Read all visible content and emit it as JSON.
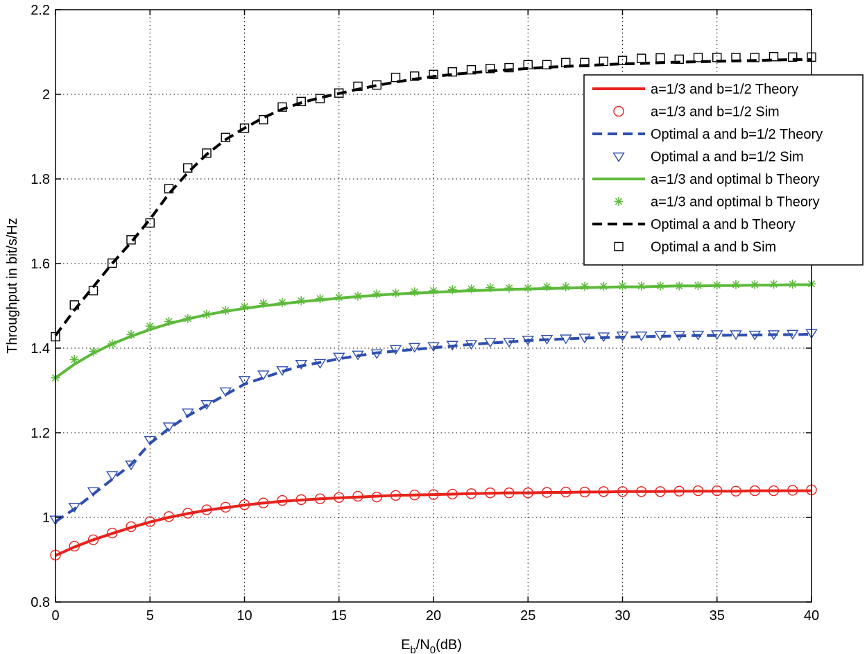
{
  "chart_data": {
    "type": "line",
    "xlabel": {
      "main": "E",
      "sub1": "b",
      "mid": "/N",
      "sub2": "0",
      "tail": "(dB)"
    },
    "ylabel": "Throughput in bit/s/Hz",
    "xlim": [
      0,
      40
    ],
    "ylim": [
      0.8,
      2.2
    ],
    "xticks": [
      0,
      5,
      10,
      15,
      20,
      25,
      30,
      35,
      40
    ],
    "xtick_labels": [
      "0",
      "5",
      "10",
      "15",
      "20",
      "25",
      "30",
      "35",
      "40"
    ],
    "yticks": [
      0.8,
      1.0,
      1.2,
      1.4,
      1.6,
      1.8,
      2.0,
      2.2
    ],
    "ytick_labels": [
      "0.8",
      "1",
      "1.2",
      "1.4",
      "1.6",
      "1.8",
      "2",
      "2.2"
    ],
    "grid": true,
    "legend_position": "top-right",
    "x": [
      0,
      1,
      2,
      3,
      4,
      5,
      6,
      7,
      8,
      9,
      10,
      11,
      12,
      13,
      14,
      15,
      16,
      17,
      18,
      19,
      20,
      21,
      22,
      23,
      24,
      25,
      26,
      27,
      28,
      29,
      30,
      31,
      32,
      33,
      34,
      35,
      36,
      37,
      38,
      39,
      40
    ],
    "series": [
      {
        "name": "a=1/3 and b=1/2 Theory",
        "style": "solid",
        "color": "#e8221c",
        "values": [
          0.91,
          0.93,
          0.947,
          0.962,
          0.976,
          0.989,
          1.0,
          1.009,
          1.017,
          1.023,
          1.029,
          1.034,
          1.038,
          1.041,
          1.044,
          1.046,
          1.048,
          1.05,
          1.052,
          1.053,
          1.054,
          1.055,
          1.056,
          1.057,
          1.058,
          1.058,
          1.059,
          1.059,
          1.06,
          1.06,
          1.061,
          1.061,
          1.061,
          1.062,
          1.062,
          1.062,
          1.062,
          1.063,
          1.063,
          1.063,
          1.063
        ]
      },
      {
        "name": "a=1/3 and b=1/2 Sim",
        "style": "circle",
        "color": "#e8221c",
        "values": [
          0.911,
          0.932,
          0.947,
          0.963,
          0.978,
          0.99,
          1.002,
          1.01,
          1.018,
          1.024,
          1.03,
          1.034,
          1.04,
          1.042,
          1.044,
          1.047,
          1.05,
          1.048,
          1.052,
          1.053,
          1.054,
          1.055,
          1.056,
          1.058,
          1.058,
          1.058,
          1.059,
          1.06,
          1.06,
          1.061,
          1.061,
          1.061,
          1.061,
          1.062,
          1.063,
          1.063,
          1.062,
          1.063,
          1.063,
          1.064,
          1.065
        ]
      },
      {
        "name": "Optimal a and b=1/2 Theory",
        "style": "dashed",
        "color": "#2e4eae",
        "values": [
          0.99,
          1.02,
          1.055,
          1.09,
          1.125,
          1.175,
          1.21,
          1.24,
          1.265,
          1.29,
          1.315,
          1.33,
          1.345,
          1.358,
          1.366,
          1.375,
          1.382,
          1.389,
          1.393,
          1.397,
          1.401,
          1.405,
          1.409,
          1.412,
          1.415,
          1.418,
          1.42,
          1.422,
          1.424,
          1.425,
          1.426,
          1.427,
          1.428,
          1.429,
          1.43,
          1.43,
          1.431,
          1.431,
          1.432,
          1.432,
          1.433
        ]
      },
      {
        "name": "Optimal a and b=1/2 Sim",
        "style": "triangle",
        "color": "#2e4eae",
        "values": [
          0.995,
          1.025,
          1.062,
          1.1,
          1.125,
          1.183,
          1.215,
          1.248,
          1.268,
          1.298,
          1.325,
          1.338,
          1.348,
          1.363,
          1.365,
          1.38,
          1.385,
          1.388,
          1.398,
          1.403,
          1.405,
          1.408,
          1.41,
          1.415,
          1.415,
          1.42,
          1.422,
          1.423,
          1.425,
          1.428,
          1.43,
          1.43,
          1.431,
          1.431,
          1.432,
          1.433,
          1.433,
          1.432,
          1.433,
          1.434,
          1.436
        ]
      },
      {
        "name": "a=1/3 and optimal b Theory",
        "style": "solid",
        "color": "#5dba3b",
        "values": [
          1.33,
          1.362,
          1.388,
          1.41,
          1.428,
          1.444,
          1.458,
          1.469,
          1.479,
          1.487,
          1.494,
          1.5,
          1.505,
          1.51,
          1.514,
          1.518,
          1.522,
          1.525,
          1.528,
          1.53,
          1.532,
          1.534,
          1.536,
          1.537,
          1.539,
          1.54,
          1.541,
          1.542,
          1.543,
          1.544,
          1.545,
          1.545,
          1.546,
          1.547,
          1.547,
          1.548,
          1.548,
          1.549,
          1.549,
          1.55,
          1.55
        ]
      },
      {
        "name": "a=1/3 and optimal b Theory",
        "style": "star",
        "color": "#5dba3b",
        "values": [
          1.33,
          1.373,
          1.392,
          1.41,
          1.432,
          1.452,
          1.463,
          1.47,
          1.48,
          1.489,
          1.498,
          1.506,
          1.508,
          1.512,
          1.517,
          1.52,
          1.523,
          1.528,
          1.53,
          1.533,
          1.536,
          1.538,
          1.54,
          1.543,
          1.542,
          1.542,
          1.545,
          1.545,
          1.546,
          1.546,
          1.547,
          1.547,
          1.547,
          1.547,
          1.548,
          1.549,
          1.55,
          1.55,
          1.551,
          1.551,
          1.552
        ]
      },
      {
        "name": "Optimal a and b Theory",
        "style": "dashed",
        "color": "#000000",
        "values": [
          1.43,
          1.49,
          1.545,
          1.6,
          1.65,
          1.705,
          1.765,
          1.815,
          1.858,
          1.893,
          1.92,
          1.945,
          1.965,
          1.98,
          1.992,
          2.002,
          2.012,
          2.021,
          2.029,
          2.036,
          2.042,
          2.047,
          2.051,
          2.055,
          2.058,
          2.061,
          2.064,
          2.066,
          2.068,
          2.07,
          2.072,
          2.073,
          2.075,
          2.076,
          2.077,
          2.078,
          2.079,
          2.08,
          2.081,
          2.082,
          2.082
        ]
      },
      {
        "name": "Optimal a and b Sim",
        "style": "square",
        "color": "#000000",
        "values": [
          1.427,
          1.502,
          1.536,
          1.601,
          1.656,
          1.696,
          1.777,
          1.826,
          1.861,
          1.898,
          1.92,
          1.94,
          1.97,
          1.983,
          1.99,
          2.003,
          2.019,
          2.022,
          2.04,
          2.043,
          2.047,
          2.053,
          2.058,
          2.061,
          2.063,
          2.07,
          2.07,
          2.075,
          2.075,
          2.078,
          2.08,
          2.085,
          2.086,
          2.083,
          2.087,
          2.087,
          2.087,
          2.087,
          2.089,
          2.088,
          2.088
        ]
      }
    ]
  }
}
